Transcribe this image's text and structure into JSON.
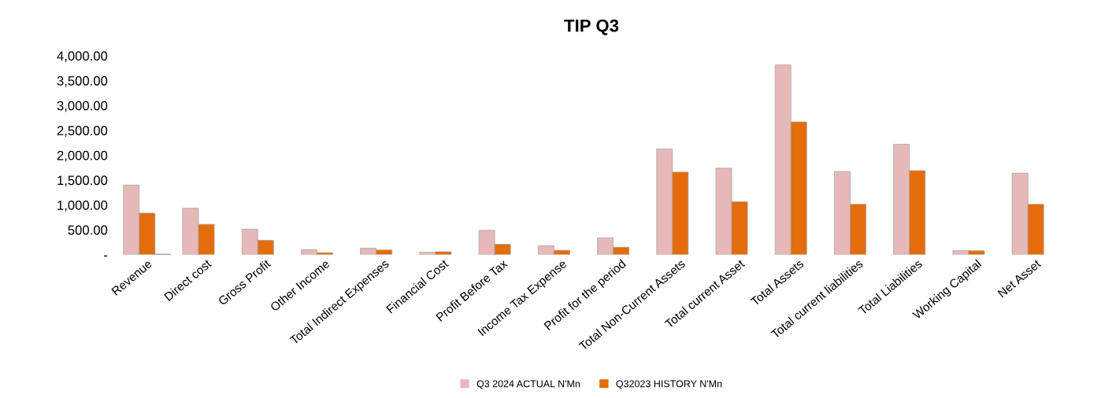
{
  "chart_data": {
    "type": "bar",
    "title": "TIP Q3",
    "categories": [
      "Revenue",
      "Direct cost",
      "Gross Profit",
      "Other Income",
      "Total Indirect Expenses",
      "Financial Cost",
      "Profit Before Tax",
      "Income Tax Expense",
      "Profit for the period",
      "Total Non-Current Assets",
      "Total current Asset",
      "Total Assets",
      "Total current liabilities",
      "Total Liabilities",
      "Working Capital",
      "Net Asset"
    ],
    "series": [
      {
        "name": "Q3 2024 ACTUAL N'Mn",
        "color": "#e6b9b8",
        "values": [
          1400,
          934,
          515,
          100,
          130,
          50,
          490,
          180,
          340,
          2125,
          1740,
          3815,
          1675,
          2220,
          80,
          1640
        ]
      },
      {
        "name": "Q32023 HISTORY N'Mn",
        "color": "#e46c0a",
        "values": [
          837,
          612,
          290,
          40,
          95,
          60,
          210,
          90,
          150,
          1660,
          1065,
          2670,
          1015,
          1690,
          80,
          1015
        ]
      },
      {
        "color": "#4a7ebb",
        "values": [
          15,
          null,
          null,
          null,
          null,
          null,
          null,
          null,
          null,
          null,
          null,
          null,
          null,
          null,
          null,
          null
        ]
      }
    ],
    "ylim": [
      0,
      4000
    ],
    "yticks": [
      {
        "value": 0,
        "label": "-"
      },
      {
        "value": 500,
        "label": "500.00"
      },
      {
        "value": 1000,
        "label": "1,000.00"
      },
      {
        "value": 1500,
        "label": "1,500.00"
      },
      {
        "value": 2000,
        "label": "2,000.00"
      },
      {
        "value": 2500,
        "label": "2,500.00"
      },
      {
        "value": 3000,
        "label": "3,000.00"
      },
      {
        "value": 3500,
        "label": "3,500.00"
      },
      {
        "value": 4000,
        "label": "4,000.00"
      }
    ],
    "grid": false,
    "legend": "bottom"
  }
}
